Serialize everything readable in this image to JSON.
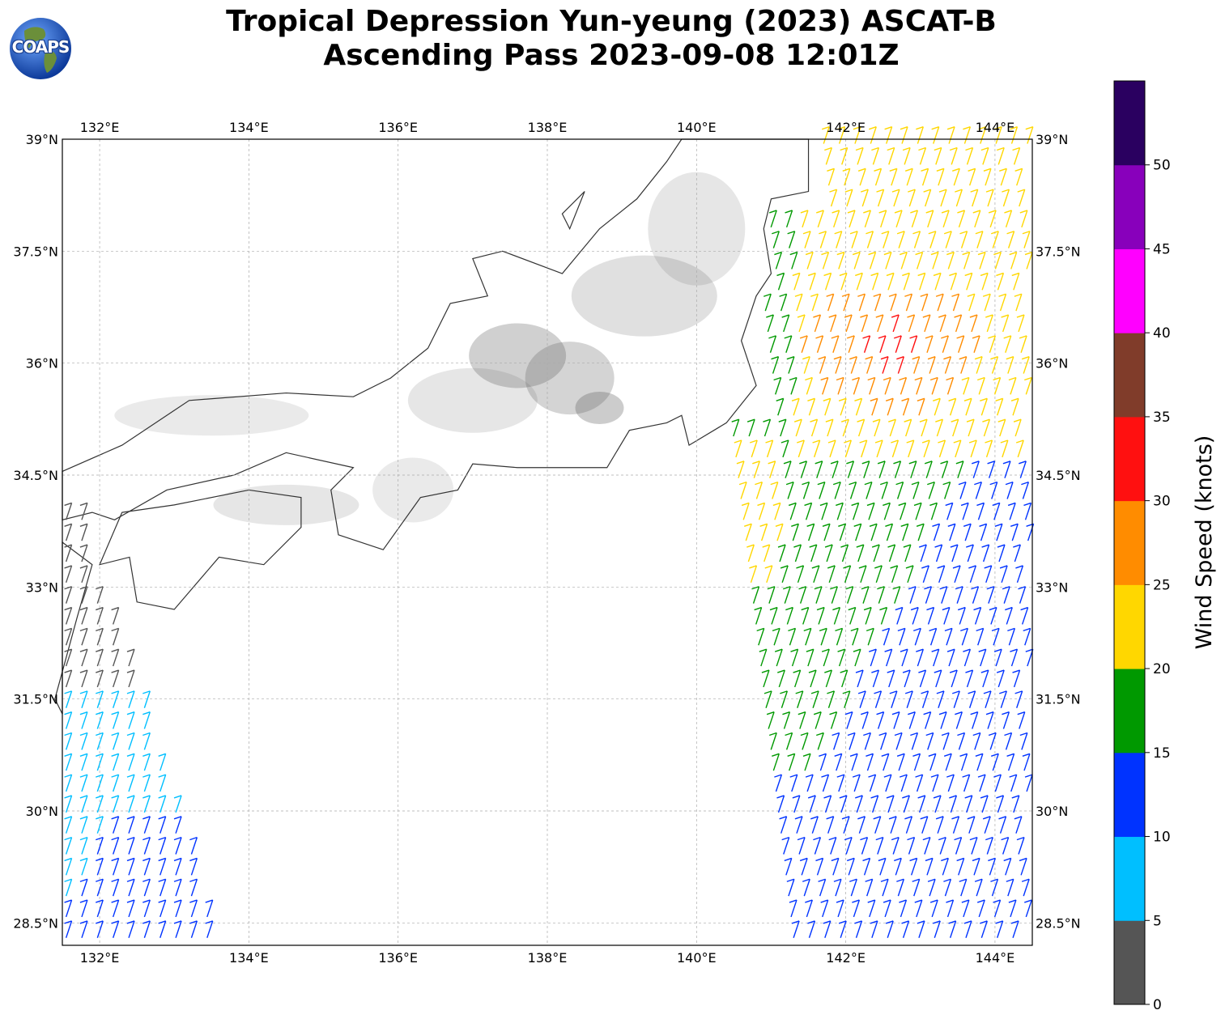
{
  "title": {
    "line1": "Tropical Depression Yun-yeung (2023) ASCAT-B",
    "line2": "Ascending Pass 2023-09-08 12:01Z"
  },
  "logo": {
    "text": "COAPS"
  },
  "map": {
    "lon_range": [
      131.5,
      144.5
    ],
    "lat_range": [
      28.2,
      39.0
    ],
    "lon_ticks": [
      "132°E",
      "134°E",
      "136°E",
      "138°E",
      "140°E",
      "142°E",
      "144°E"
    ],
    "lat_ticks": [
      "39°N",
      "37.5°N",
      "36°N",
      "34.5°N",
      "33°N",
      "31.5°N",
      "30°N",
      "28.5°N"
    ],
    "grid": "dashed gray"
  },
  "colorbar": {
    "label": "Wind Speed (knots)",
    "ticks": [
      "0",
      "5",
      "10",
      "15",
      "20",
      "25",
      "30",
      "35",
      "40",
      "45",
      "50"
    ],
    "colors": [
      "#555555",
      "#00bfff",
      "#0033ff",
      "#009900",
      "#ffd700",
      "#ff8c00",
      "#ff1010",
      "#803c2a",
      "#ff00ff",
      "#8800bb",
      "#2a0060"
    ]
  }
}
